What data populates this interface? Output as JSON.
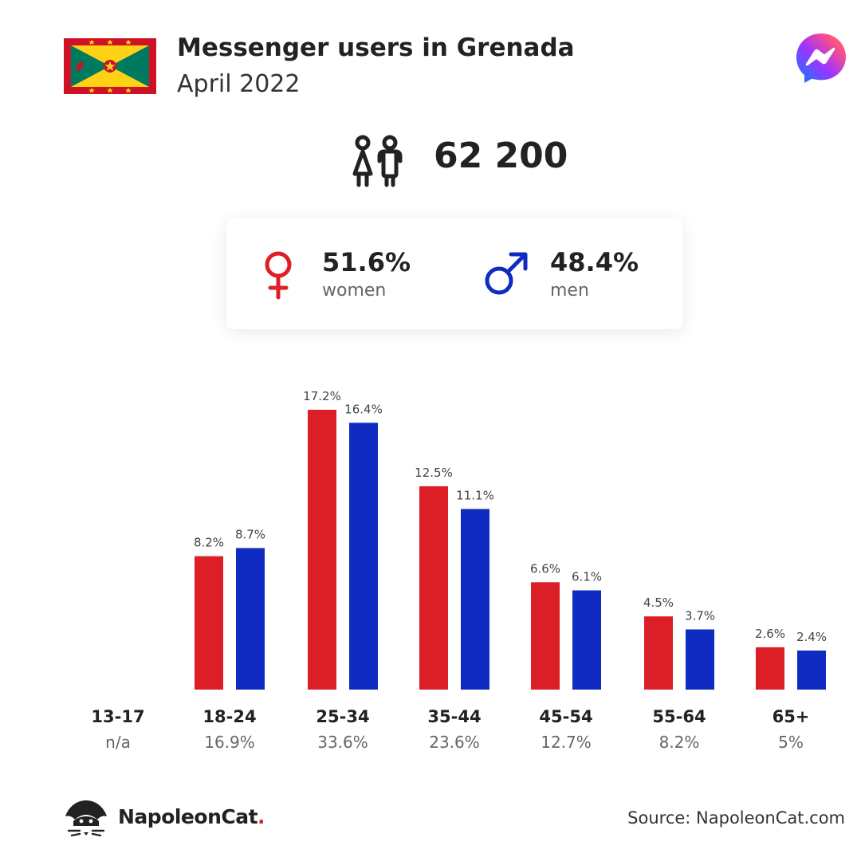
{
  "header": {
    "title": "Messenger users in Grenada",
    "subtitle": "April 2022"
  },
  "total": {
    "value": "62 200"
  },
  "gender": {
    "women_percent": "51.6%",
    "women_label": "women",
    "men_percent": "48.4%",
    "men_label": "men"
  },
  "colors": {
    "women": "#dc1f26",
    "men": "#102bc1"
  },
  "chart_data": {
    "type": "bar",
    "categories": [
      "13-17",
      "18-24",
      "25-34",
      "35-44",
      "45-54",
      "55-64",
      "65+"
    ],
    "group_totals": [
      "n/a",
      "16.9%",
      "33.6%",
      "23.6%",
      "12.7%",
      "8.2%",
      "5%"
    ],
    "series": [
      {
        "color": "#dc1f26",
        "values": [
          null,
          8.2,
          17.2,
          12.5,
          6.6,
          4.5,
          2.6
        ],
        "labels": [
          "",
          "8.2%",
          "17.2%",
          "12.5%",
          "6.6%",
          "4.5%",
          "2.6%"
        ]
      },
      {
        "color": "#102bc1",
        "values": [
          null,
          8.7,
          16.4,
          11.1,
          6.1,
          3.7,
          2.4
        ],
        "labels": [
          "",
          "8.7%",
          "16.4%",
          "11.1%",
          "6.1%",
          "3.7%",
          "2.4%"
        ]
      }
    ],
    "ylim": [
      0,
      17.2
    ]
  },
  "footer": {
    "brand": "NapoleonCat",
    "brand_dot": ".",
    "source": "Source: NapoleonCat.com"
  }
}
